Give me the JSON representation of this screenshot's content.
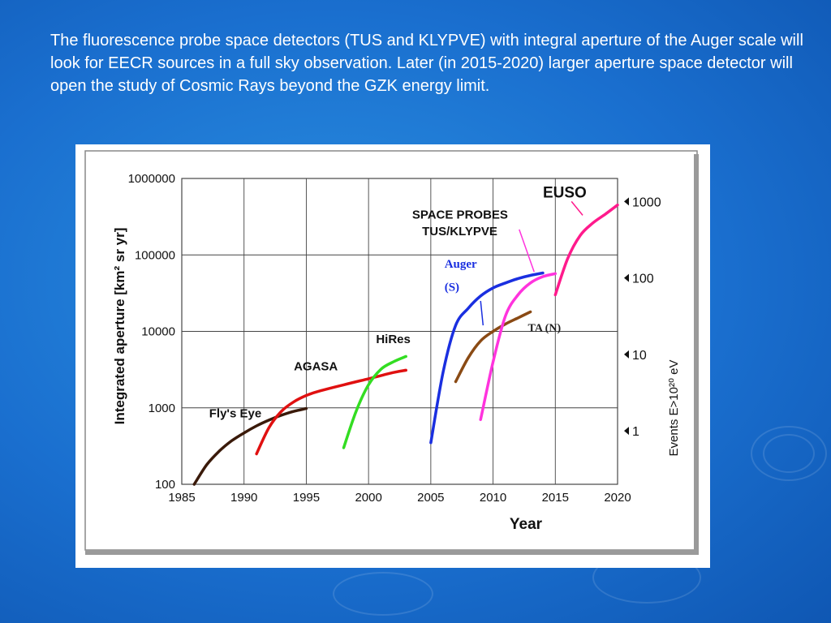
{
  "slide": {
    "caption": "The fluorescence probe space detectors (TUS and KLYPVE) with integral aperture of the Auger scale will look for EECR sources in a full sky observation. Later (in 2015-2020) larger aperture space detector will open the study of Cosmic Rays beyond the GZK energy limit."
  },
  "colors": {
    "background": "#1a6fcf",
    "flys_eye": "#3a1a0a",
    "agasa": "#e01010",
    "hires": "#33dd22",
    "auger": "#1a2fe0",
    "ta": "#8a4a14",
    "tus_klypve": "#ff33dd",
    "euso": "#ff1a8c"
  },
  "chart_data": {
    "type": "line",
    "title": "",
    "xlabel": "Year",
    "ylabel": "Integrated aperture [km² sr yr]",
    "right_axis_label": "Events E>10²⁰ eV",
    "xlim": [
      1985,
      2020
    ],
    "ylim": [
      100,
      1000000
    ],
    "yscale": "log",
    "grid": true,
    "x_ticks": [
      "1985",
      "1990",
      "1995",
      "2000",
      "2005",
      "2010",
      "2015",
      "2020"
    ],
    "y_ticks": [
      "100",
      "1000",
      "10000",
      "100000",
      "1000000"
    ],
    "right_ticks": [
      {
        "label": "1000",
        "y": 500000
      },
      {
        "label": "100",
        "y": 50000
      },
      {
        "label": "10",
        "y": 5000
      },
      {
        "label": "1",
        "y": 500
      }
    ],
    "series": [
      {
        "name": "Fly's Eye",
        "color_key": "flys_eye",
        "x": [
          1986,
          1987,
          1988,
          1989,
          1990,
          1991,
          1992,
          1993,
          1994,
          1995
        ],
        "y": [
          100,
          180,
          270,
          370,
          470,
          580,
          690,
          800,
          900,
          980
        ]
      },
      {
        "name": "AGASA",
        "color_key": "agasa",
        "x": [
          1991,
          1992,
          1993,
          1994,
          1995,
          1996,
          1998,
          2000,
          2002,
          2003
        ],
        "y": [
          250,
          550,
          900,
          1200,
          1450,
          1650,
          2000,
          2400,
          2900,
          3100
        ]
      },
      {
        "name": "HiRes",
        "color_key": "hires",
        "x": [
          1998,
          1999,
          2000,
          2001,
          2002,
          2003
        ],
        "y": [
          300,
          900,
          2000,
          3200,
          4000,
          4700
        ]
      },
      {
        "name": "Auger (S)",
        "color_key": "auger",
        "x": [
          2005,
          2006,
          2007,
          2008,
          2009,
          2010,
          2011,
          2012,
          2013,
          2014
        ],
        "y": [
          350,
          3000,
          12000,
          20000,
          29000,
          37000,
          43000,
          49000,
          54000,
          58000
        ]
      },
      {
        "name": "TA (N)",
        "color_key": "ta",
        "x": [
          2007,
          2008,
          2009,
          2010,
          2011,
          2012,
          2013
        ],
        "y": [
          2200,
          4500,
          7500,
          10000,
          12500,
          15000,
          18000
        ]
      },
      {
        "name": "TUS/KLYPVE",
        "color_key": "tus_klypve",
        "x": [
          2009,
          2010,
          2011,
          2012,
          2013,
          2014,
          2015
        ],
        "y": [
          700,
          4000,
          16000,
          30000,
          43000,
          52000,
          57000
        ]
      },
      {
        "name": "EUSO",
        "color_key": "euso",
        "x": [
          2015,
          2016,
          2017,
          2018,
          2019,
          2020
        ],
        "y": [
          30000,
          90000,
          180000,
          260000,
          340000,
          450000
        ]
      }
    ],
    "annotations": [
      {
        "text": "Fly's Eye",
        "x": 1987.2,
        "y": 750
      },
      {
        "text": "AGASA",
        "x": 1994,
        "y": 3100
      },
      {
        "text": "HiRes",
        "x": 2000.6,
        "y": 7000
      },
      {
        "text": "Auger",
        "x": 2006.1,
        "y": 68000
      },
      {
        "text": "(S)",
        "x": 2006.1,
        "y": 34000
      },
      {
        "text": "TA (N)",
        "x": 2012.8,
        "y": 10000
      },
      {
        "text": "SPACE PROBES",
        "x": 2003.5,
        "y": 300000
      },
      {
        "text": "TUS/KLYPVE",
        "x": 2004.3,
        "y": 180000
      },
      {
        "text": "EUSO",
        "x": 2014,
        "y": 560000
      }
    ]
  }
}
